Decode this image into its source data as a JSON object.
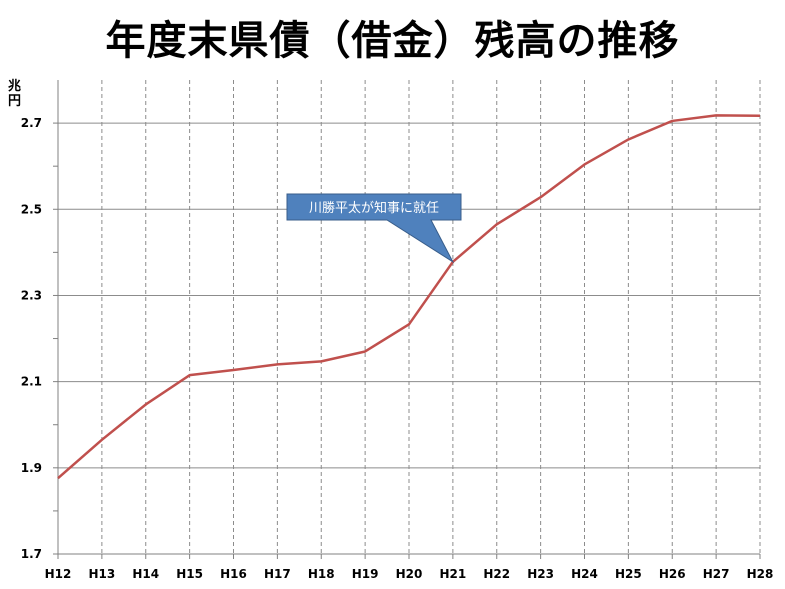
{
  "title": "年度末県債（借金）残高の推移",
  "chart_data": {
    "type": "line",
    "title": "年度末県債（借金）残高の推移",
    "ylabel": "兆円",
    "xlabel": "",
    "categories": [
      "H12",
      "H13",
      "H14",
      "H15",
      "H16",
      "H17",
      "H18",
      "H19",
      "H20",
      "H21",
      "H22",
      "H23",
      "H24",
      "H25",
      "H26",
      "H27",
      "H28"
    ],
    "series": [
      {
        "name": "",
        "color": "#c0504d",
        "values": [
          1.876,
          1.965,
          2.047,
          2.115,
          2.127,
          2.14,
          2.147,
          2.17,
          2.233,
          2.378,
          2.465,
          2.528,
          2.604,
          2.662,
          2.705,
          2.718,
          2.717
        ]
      }
    ],
    "ylim": [
      1.7,
      2.8
    ],
    "yticks": [
      1.7,
      1.9,
      2.1,
      2.3,
      2.5,
      2.7
    ],
    "ytick_labels": [
      "1.7",
      "1.9",
      "2.1",
      "2.3",
      "2.5",
      "2.7"
    ],
    "grid": {
      "horizontal": "solid",
      "vertical": "dashed"
    },
    "annotations": [
      {
        "text": "川勝平太が知事に就任",
        "points_to": "H21",
        "color": "#4f81bd"
      }
    ]
  }
}
